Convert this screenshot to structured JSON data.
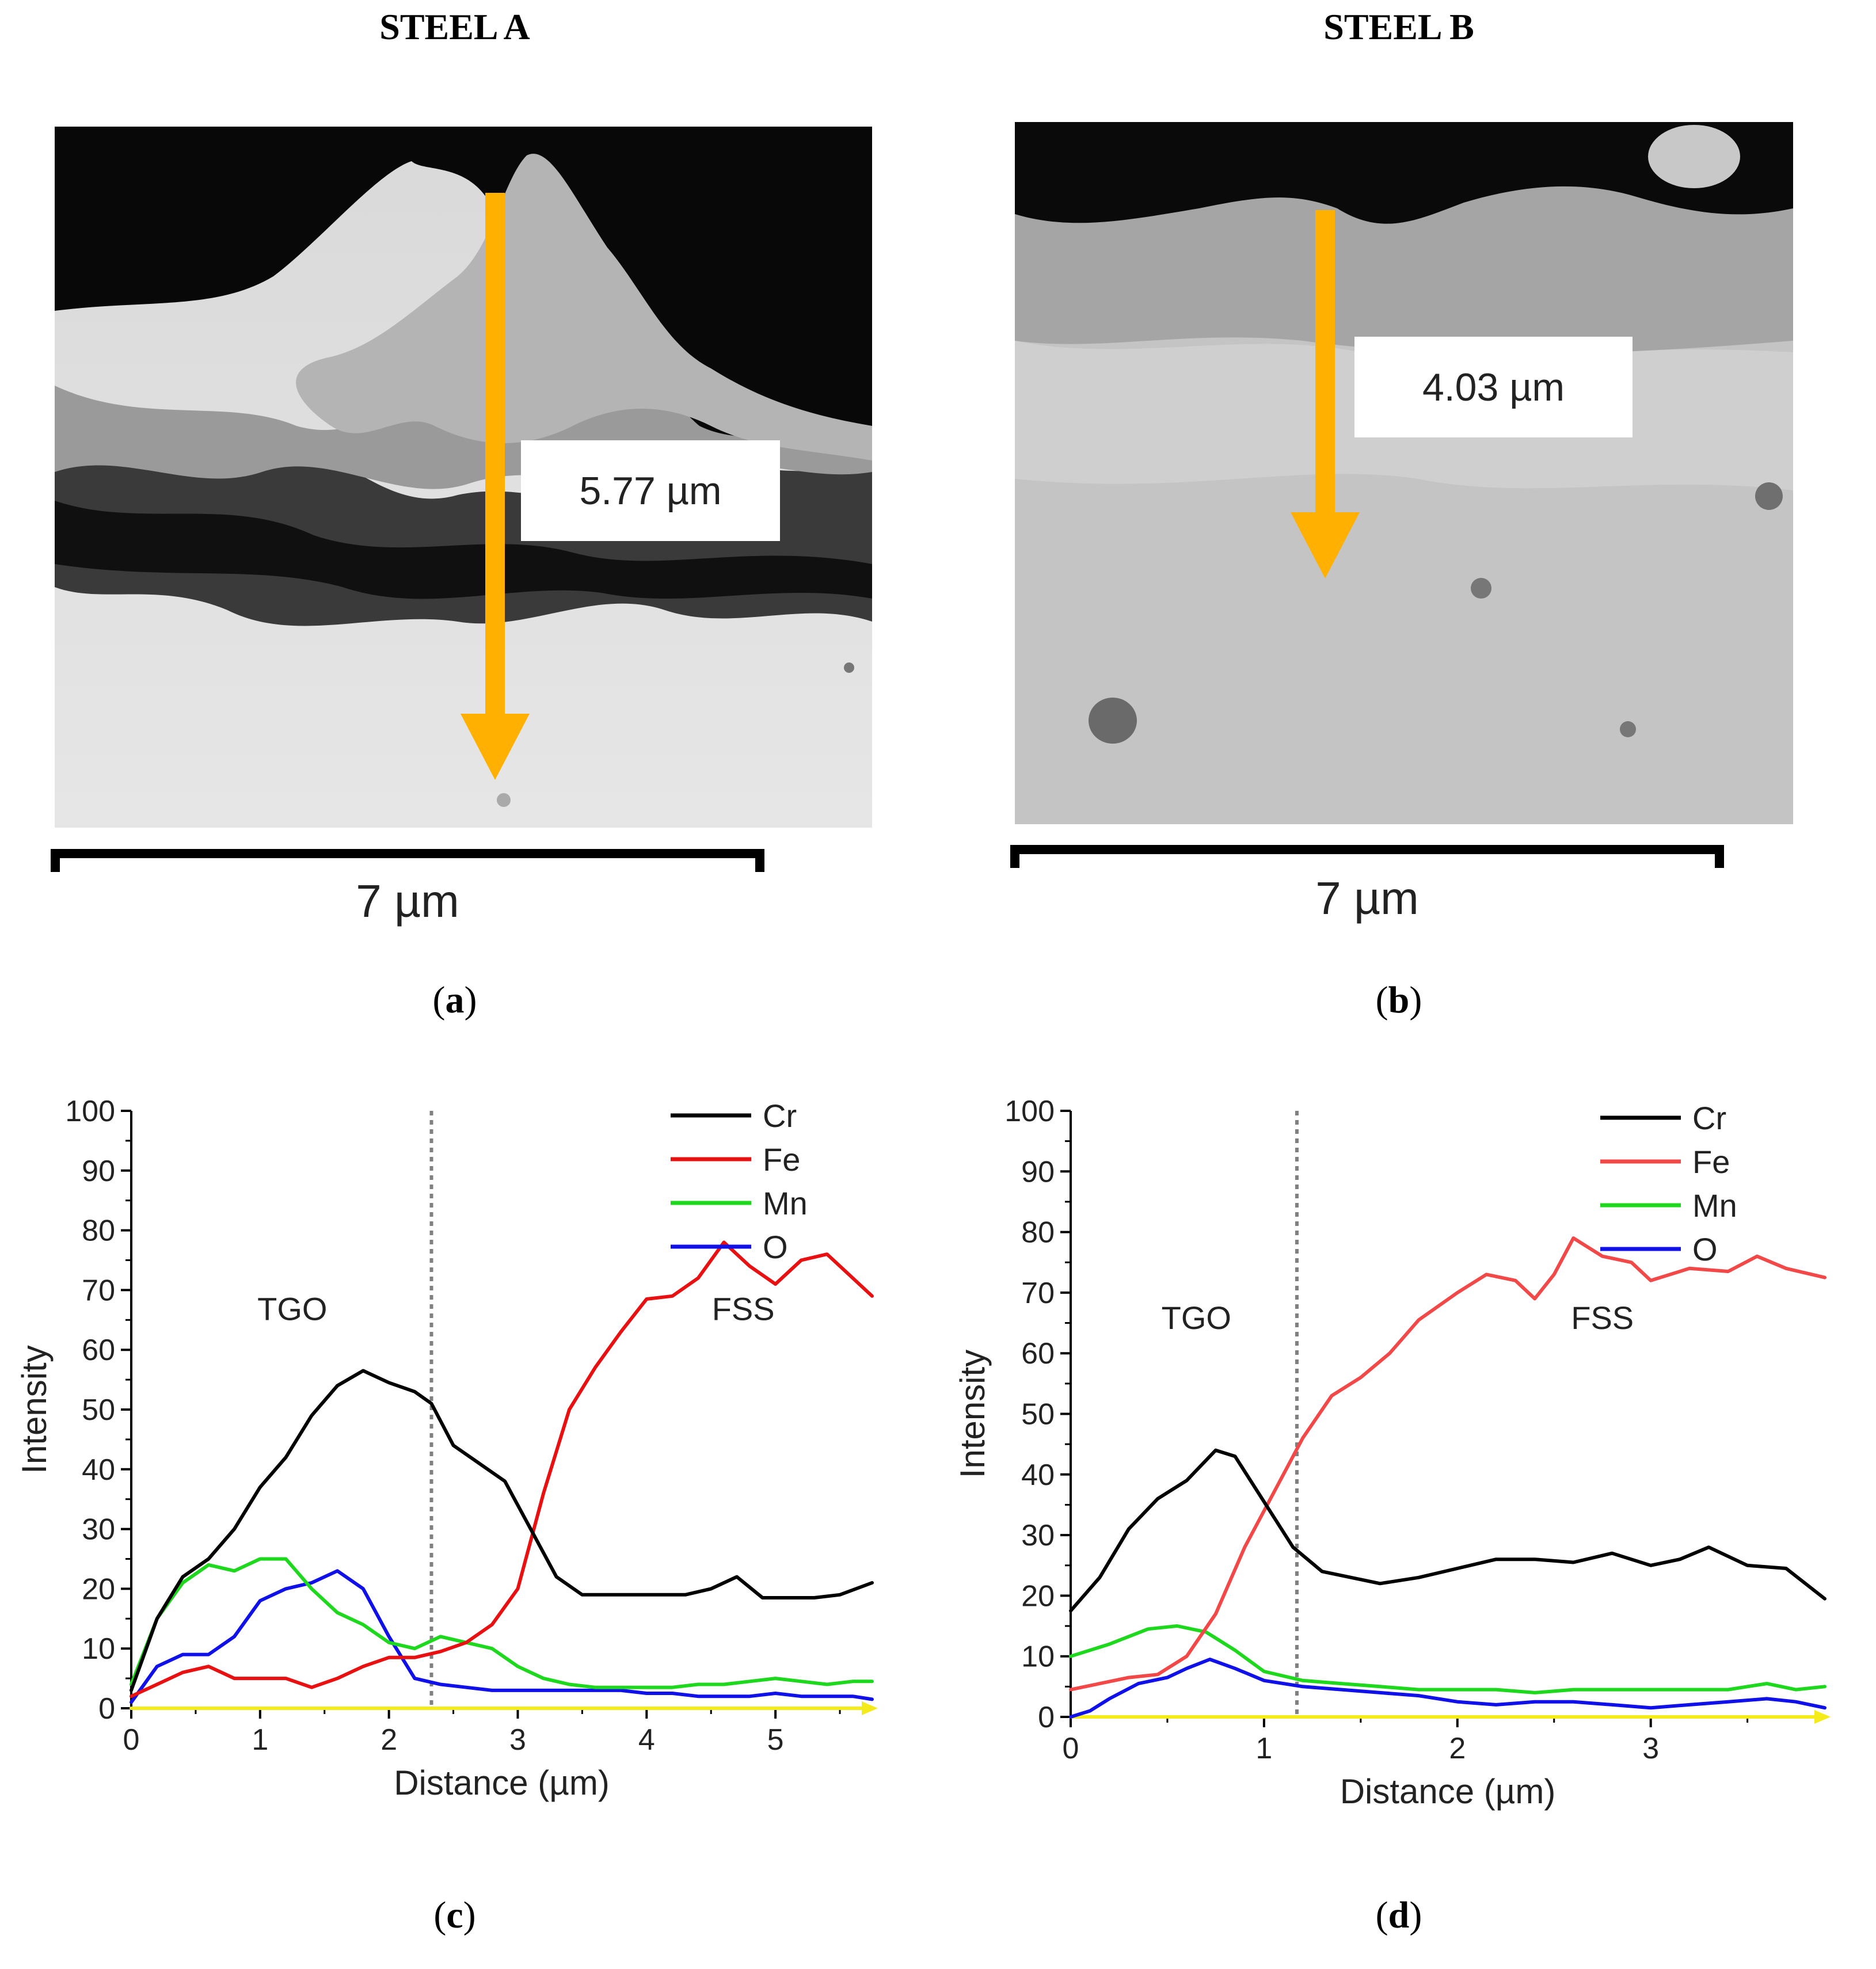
{
  "titles": {
    "left": "STEEL A",
    "right": "STEEL B"
  },
  "panels": {
    "a": {
      "label_open": "(",
      "letter": "a",
      "label_close": ")",
      "measurement": "5.77 µm",
      "scale": "7 µm"
    },
    "b": {
      "label_open": "(",
      "letter": "b",
      "label_close": ")",
      "measurement": "4.03 µm",
      "scale": "7 µm"
    },
    "c": {
      "label_open": "(",
      "letter": "c",
      "label_close": ")"
    },
    "d": {
      "label_open": "(",
      "letter": "d",
      "label_close": ")"
    }
  },
  "colors": {
    "arrow": "#FFB000",
    "Cr": "#000000",
    "Fe_c": "#E81010",
    "Fe_d": "#F24848",
    "Mn": "#1ED81E",
    "O": "#1010E8",
    "baseline": "#F5EB1A",
    "divider": "#808080"
  },
  "chart_data": [
    {
      "id": "c",
      "type": "line",
      "xlabel": "Distance (µm)",
      "ylabel": "Intensity",
      "xlim": [
        0,
        5.75
      ],
      "ylim": [
        0,
        100
      ],
      "xticks": [
        0,
        1,
        2,
        3,
        4,
        5
      ],
      "yticks": [
        0,
        10,
        20,
        30,
        40,
        50,
        60,
        70,
        80,
        90,
        100
      ],
      "divider_x": 2.33,
      "annotations": [
        {
          "text": "TGO",
          "x": 1.25,
          "y": 65
        },
        {
          "text": "FSS",
          "x": 4.75,
          "y": 65
        }
      ],
      "legend": [
        "Cr",
        "Fe",
        "Mn",
        "O"
      ],
      "series": [
        {
          "name": "Cr",
          "x": [
            0,
            0.2,
            0.4,
            0.6,
            0.8,
            1.0,
            1.2,
            1.4,
            1.6,
            1.8,
            2.0,
            2.2,
            2.33,
            2.5,
            2.7,
            2.9,
            3.1,
            3.3,
            3.5,
            3.7,
            3.9,
            4.1,
            4.3,
            4.5,
            4.7,
            4.9,
            5.1,
            5.3,
            5.5,
            5.75
          ],
          "y": [
            3,
            15,
            22,
            25,
            30,
            37,
            42,
            49,
            54,
            56.5,
            54.5,
            53,
            51,
            44,
            41,
            38,
            30,
            22,
            19,
            19,
            19,
            19,
            19,
            20,
            22,
            18.5,
            18.5,
            18.5,
            19,
            21
          ]
        },
        {
          "name": "Fe",
          "x": [
            0,
            0.2,
            0.4,
            0.6,
            0.8,
            1.0,
            1.2,
            1.4,
            1.6,
            1.8,
            2.0,
            2.2,
            2.4,
            2.6,
            2.8,
            3.0,
            3.2,
            3.4,
            3.6,
            3.8,
            4.0,
            4.2,
            4.4,
            4.6,
            4.8,
            5.0,
            5.2,
            5.4,
            5.6,
            5.75
          ],
          "y": [
            2,
            4,
            6,
            7,
            5,
            5,
            5,
            3.5,
            5,
            7,
            8.5,
            8.5,
            9.5,
            11,
            14,
            20,
            36,
            50,
            57,
            63,
            68.5,
            69,
            72,
            78,
            74,
            71,
            75,
            76,
            72,
            69
          ]
        },
        {
          "name": "Mn",
          "x": [
            0,
            0.2,
            0.4,
            0.6,
            0.8,
            1.0,
            1.2,
            1.4,
            1.6,
            1.8,
            2.0,
            2.2,
            2.4,
            2.6,
            2.8,
            3.0,
            3.2,
            3.4,
            3.6,
            3.8,
            4.0,
            4.2,
            4.4,
            4.6,
            4.8,
            5.0,
            5.2,
            5.4,
            5.6,
            5.75
          ],
          "y": [
            4,
            15,
            21,
            24,
            23,
            25,
            25,
            20,
            16,
            14,
            11,
            10,
            12,
            11,
            10,
            7,
            5,
            4,
            3.5,
            3.5,
            3.5,
            3.5,
            4,
            4,
            4.5,
            5,
            4.5,
            4,
            4.5,
            4.5
          ]
        },
        {
          "name": "O",
          "x": [
            0,
            0.2,
            0.4,
            0.6,
            0.8,
            1.0,
            1.2,
            1.4,
            1.6,
            1.8,
            2.0,
            2.2,
            2.4,
            2.6,
            2.8,
            3.0,
            3.2,
            3.4,
            3.6,
            3.8,
            4.0,
            4.2,
            4.4,
            4.6,
            4.8,
            5.0,
            5.2,
            5.4,
            5.6,
            5.75
          ],
          "y": [
            1,
            7,
            9,
            9,
            12,
            18,
            20,
            21,
            23,
            20,
            12,
            5,
            4,
            3.5,
            3,
            3,
            3,
            3,
            3,
            3,
            2.5,
            2.5,
            2,
            2,
            2,
            2.5,
            2,
            2,
            2,
            1.5
          ]
        },
        {
          "name": "baseline",
          "x": [
            0,
            5.75
          ],
          "y": [
            0,
            0
          ]
        }
      ]
    },
    {
      "id": "d",
      "type": "line",
      "xlabel": "Distance (µm)",
      "ylabel": "Intensity",
      "xlim": [
        0,
        3.9
      ],
      "ylim": [
        0,
        100
      ],
      "xticks": [
        0,
        1,
        2,
        3
      ],
      "yticks": [
        0,
        10,
        20,
        30,
        40,
        50,
        60,
        70,
        80,
        90,
        100
      ],
      "divider_x": 1.17,
      "annotations": [
        {
          "text": "TGO",
          "x": 0.65,
          "y": 64
        },
        {
          "text": "FSS",
          "x": 2.75,
          "y": 64
        }
      ],
      "legend": [
        "Cr",
        "Fe",
        "Mn",
        "O"
      ],
      "series": [
        {
          "name": "Cr",
          "x": [
            0,
            0.15,
            0.3,
            0.45,
            0.6,
            0.75,
            0.85,
            0.95,
            1.05,
            1.15,
            1.3,
            1.45,
            1.6,
            1.8,
            2.0,
            2.2,
            2.4,
            2.6,
            2.8,
            3.0,
            3.15,
            3.3,
            3.5,
            3.7,
            3.9
          ],
          "y": [
            17.5,
            23,
            31,
            36,
            39,
            44,
            43,
            38,
            33,
            28,
            24,
            23,
            22,
            23,
            24.5,
            26,
            26,
            25.5,
            27,
            25,
            26,
            28,
            25,
            24.5,
            19.5
          ]
        },
        {
          "name": "Fe",
          "x": [
            0,
            0.15,
            0.3,
            0.45,
            0.6,
            0.75,
            0.9,
            1.05,
            1.2,
            1.35,
            1.5,
            1.65,
            1.8,
            2.0,
            2.15,
            2.3,
            2.4,
            2.5,
            2.6,
            2.75,
            2.9,
            3.0,
            3.2,
            3.4,
            3.55,
            3.7,
            3.9
          ],
          "y": [
            4.5,
            5.5,
            6.5,
            7,
            10,
            17,
            28,
            37,
            46,
            53,
            56,
            60,
            65.5,
            70,
            73,
            72,
            69,
            73,
            79,
            76,
            75,
            72,
            74,
            73.5,
            76,
            74,
            72.5
          ]
        },
        {
          "name": "Mn",
          "x": [
            0,
            0.2,
            0.4,
            0.55,
            0.7,
            0.85,
            1.0,
            1.2,
            1.4,
            1.6,
            1.8,
            2.0,
            2.2,
            2.4,
            2.6,
            2.8,
            3.0,
            3.2,
            3.4,
            3.6,
            3.75,
            3.9
          ],
          "y": [
            10,
            12,
            14.5,
            15,
            14,
            11,
            7.5,
            6,
            5.5,
            5,
            4.5,
            4.5,
            4.5,
            4,
            4.5,
            4.5,
            4.5,
            4.5,
            4.5,
            5.5,
            4.5,
            5
          ]
        },
        {
          "name": "O",
          "x": [
            0,
            0.1,
            0.2,
            0.35,
            0.5,
            0.6,
            0.72,
            0.85,
            1.0,
            1.2,
            1.4,
            1.6,
            1.8,
            2.0,
            2.2,
            2.4,
            2.6,
            2.8,
            3.0,
            3.2,
            3.4,
            3.6,
            3.75,
            3.9
          ],
          "y": [
            0,
            1,
            3,
            5.5,
            6.5,
            8,
            9.5,
            8,
            6,
            5,
            4.5,
            4,
            3.5,
            2.5,
            2,
            2.5,
            2.5,
            2,
            1.5,
            2,
            2.5,
            3,
            2.5,
            1.5
          ]
        },
        {
          "name": "baseline",
          "x": [
            0,
            3.9
          ],
          "y": [
            0,
            0
          ]
        }
      ]
    }
  ]
}
